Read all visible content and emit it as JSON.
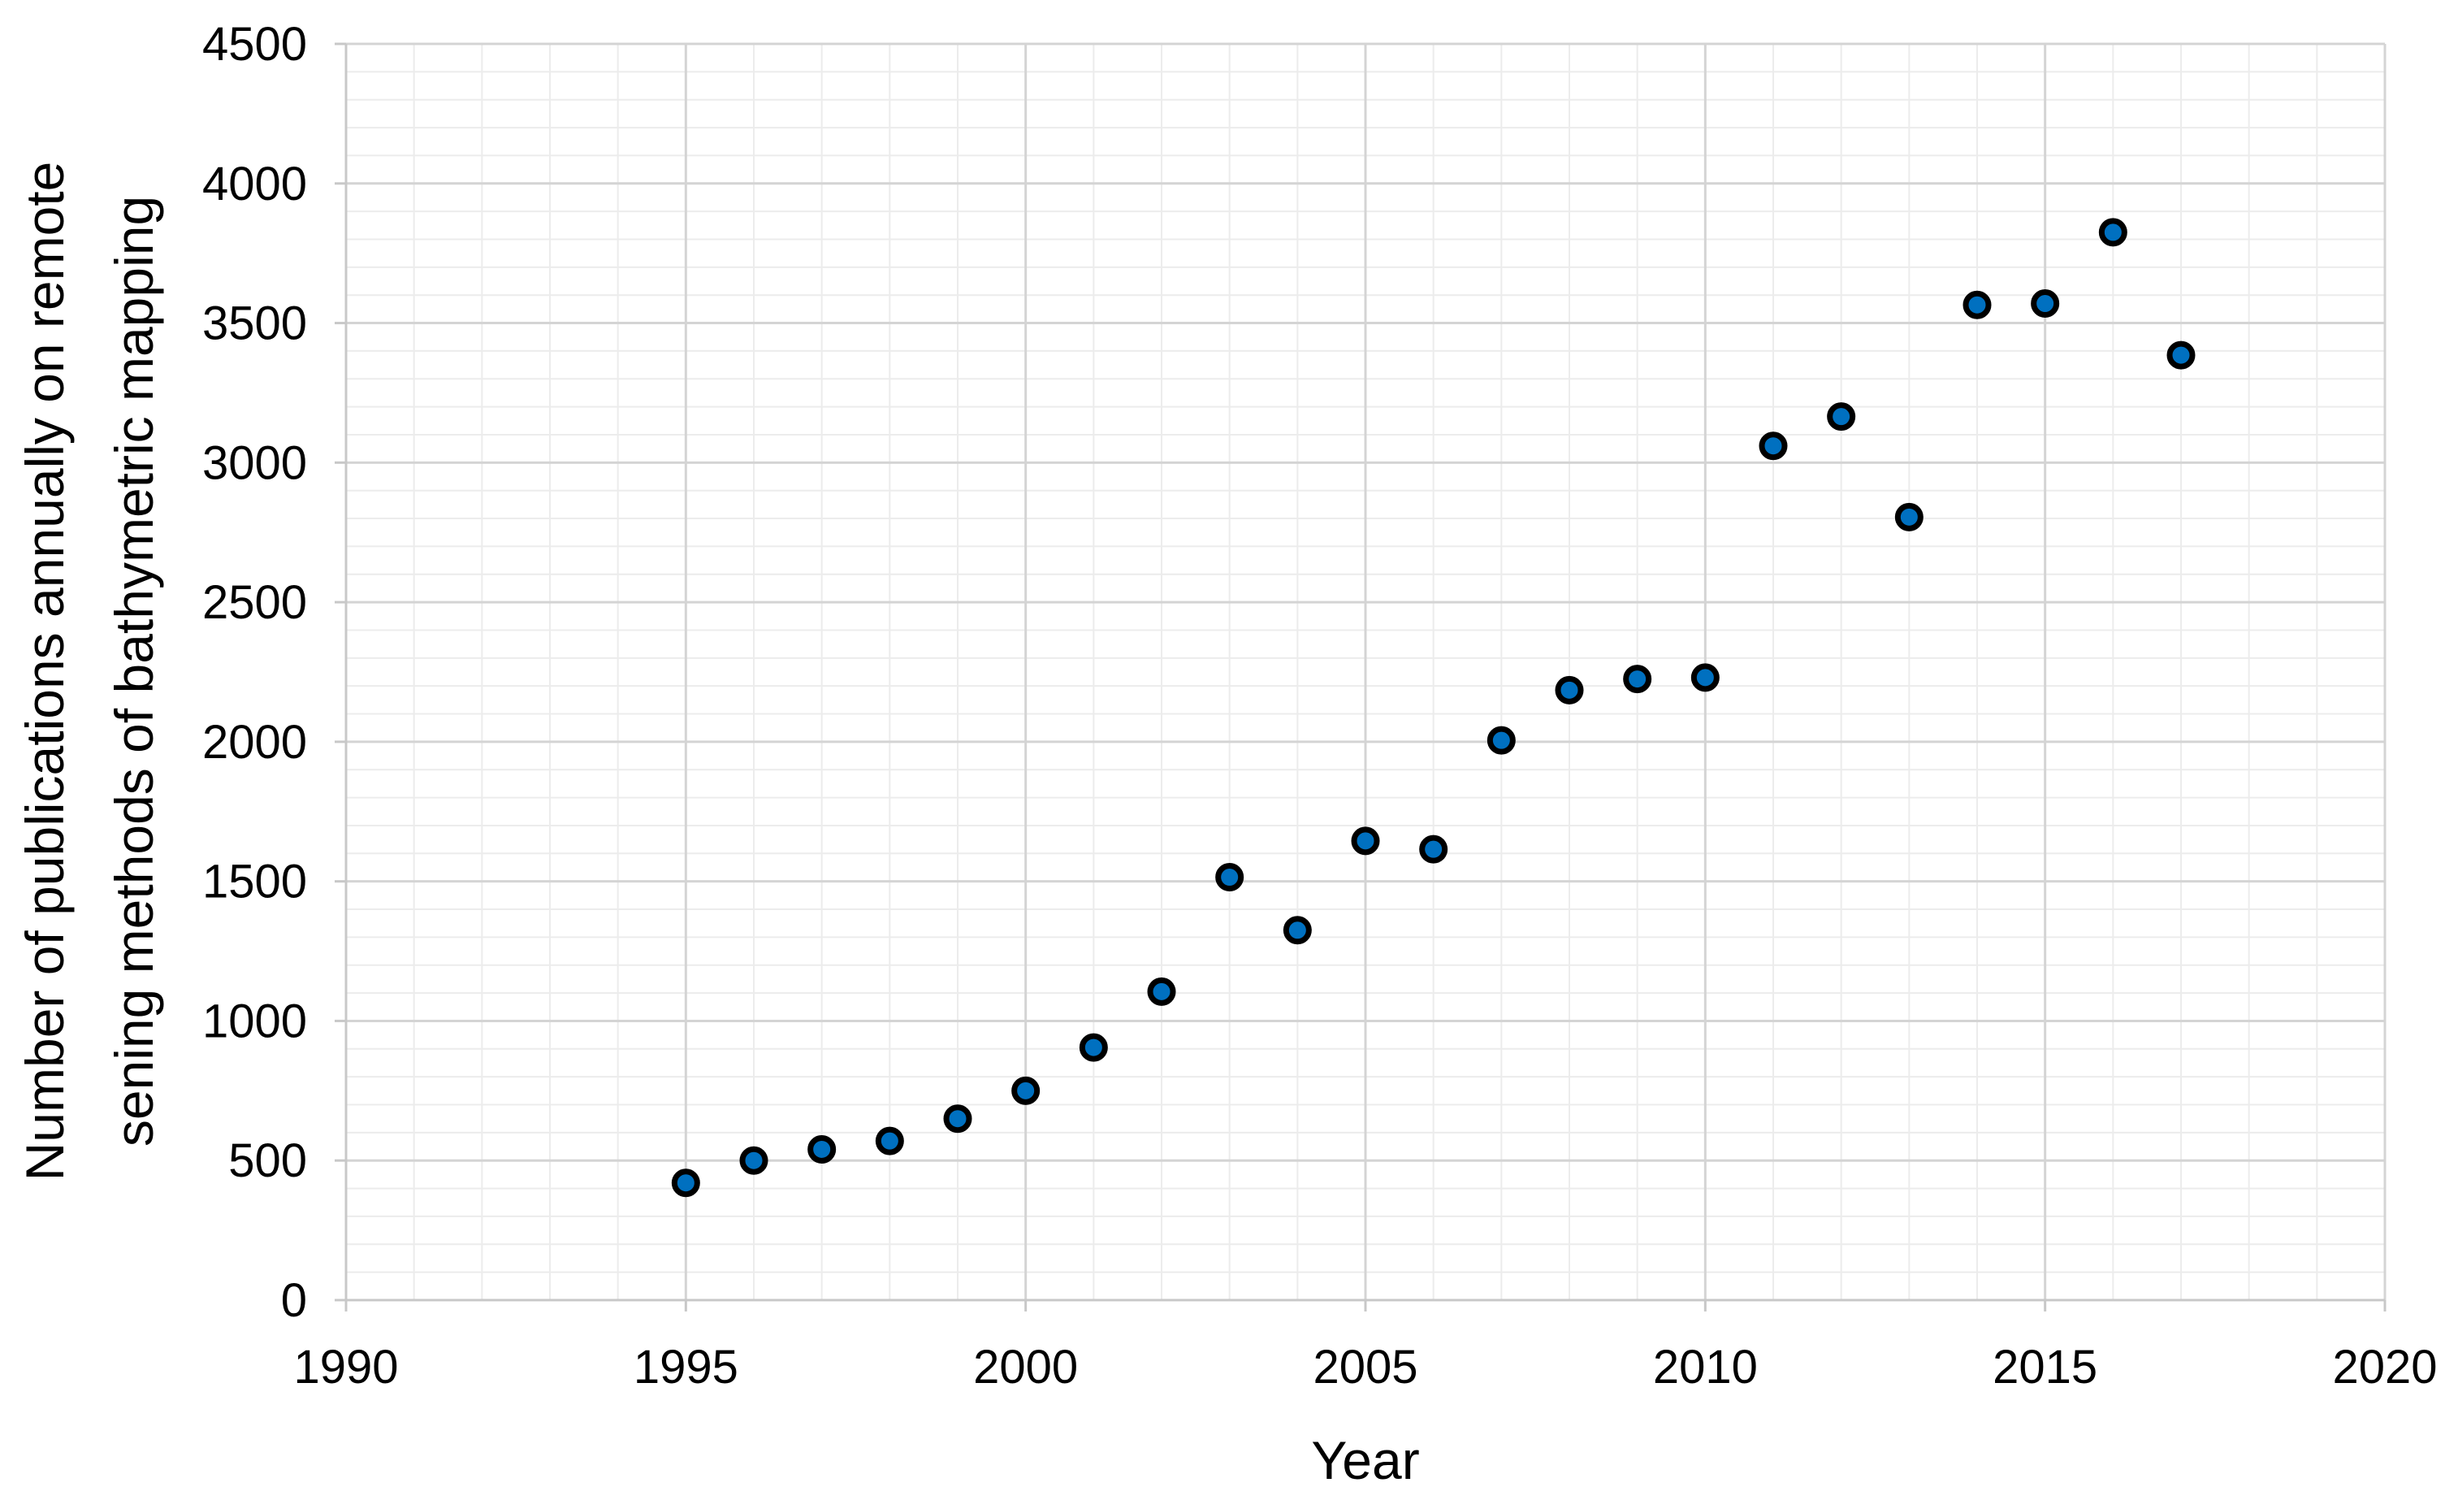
{
  "chart_data": {
    "type": "scatter",
    "title": "",
    "xlabel": "Year",
    "ylabel_lines": [
      "Number of publications annually on remote",
      "sening methods of bathymetric mapping"
    ],
    "xlim": [
      1990,
      2020
    ],
    "ylim": [
      0,
      4500
    ],
    "x_ticks": [
      1990,
      1995,
      2000,
      2005,
      2010,
      2015,
      2020
    ],
    "y_ticks": [
      0,
      500,
      1000,
      1500,
      2000,
      2500,
      3000,
      3500,
      4000,
      4500
    ],
    "x_minor_step": 1,
    "y_minor_step": 100,
    "grid": true,
    "legend": "none",
    "marker_color": "#0070c0",
    "marker_edge_color": "#000000",
    "points": [
      {
        "x": 1995,
        "y": 420
      },
      {
        "x": 1996,
        "y": 500
      },
      {
        "x": 1997,
        "y": 540
      },
      {
        "x": 1998,
        "y": 570
      },
      {
        "x": 1999,
        "y": 650
      },
      {
        "x": 2000,
        "y": 750
      },
      {
        "x": 2001,
        "y": 905
      },
      {
        "x": 2002,
        "y": 1105
      },
      {
        "x": 2003,
        "y": 1515
      },
      {
        "x": 2004,
        "y": 1325
      },
      {
        "x": 2005,
        "y": 1645
      },
      {
        "x": 2006,
        "y": 1615
      },
      {
        "x": 2007,
        "y": 2005
      },
      {
        "x": 2008,
        "y": 2185
      },
      {
        "x": 2009,
        "y": 2225
      },
      {
        "x": 2010,
        "y": 2230
      },
      {
        "x": 2011,
        "y": 3060
      },
      {
        "x": 2012,
        "y": 3165
      },
      {
        "x": 2013,
        "y": 2805
      },
      {
        "x": 2014,
        "y": 3565
      },
      {
        "x": 2015,
        "y": 3570
      },
      {
        "x": 2016,
        "y": 3825
      },
      {
        "x": 2017,
        "y": 3385
      }
    ]
  }
}
